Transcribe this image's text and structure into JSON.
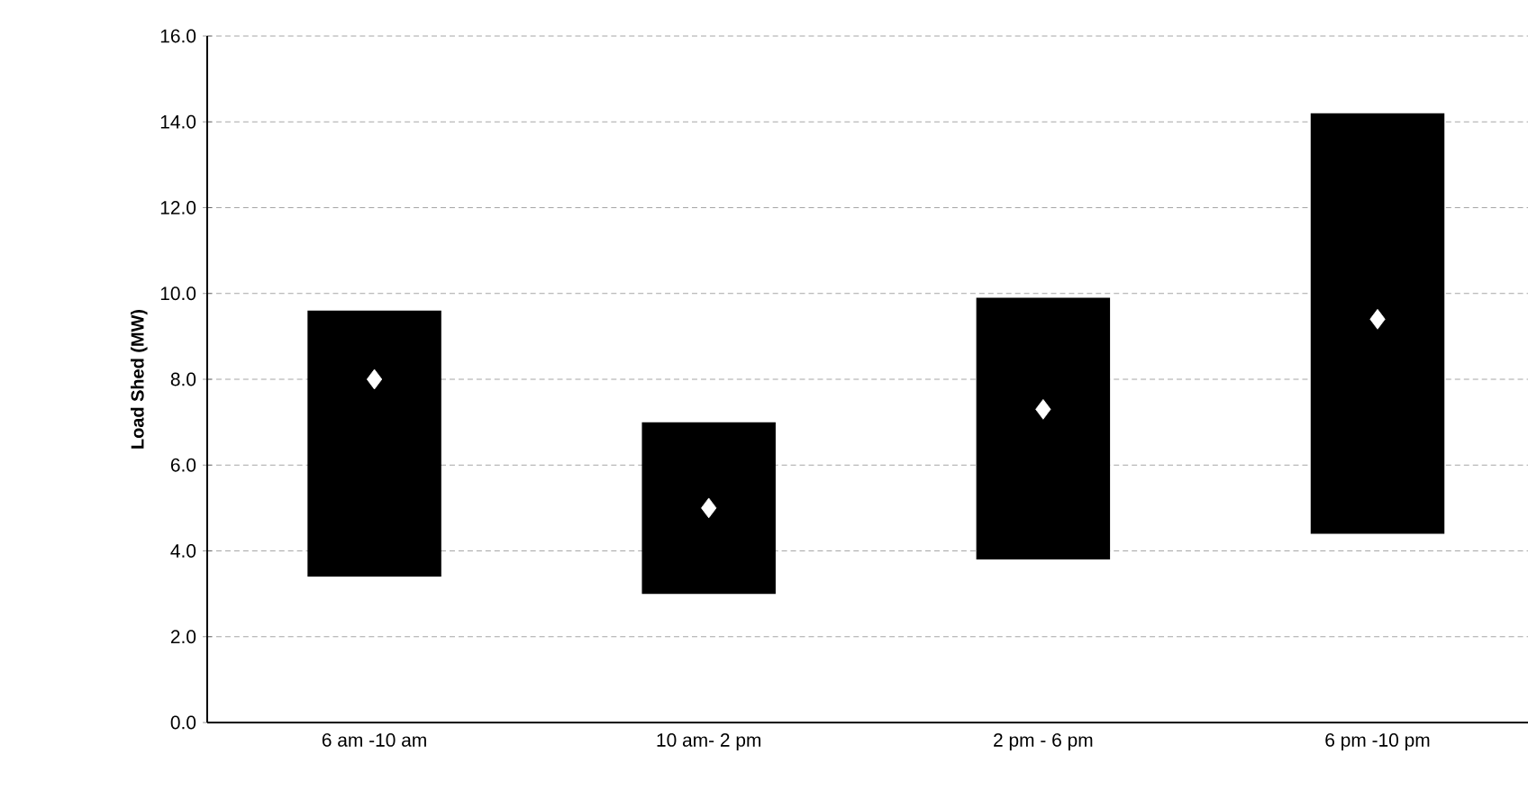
{
  "chart_data": {
    "type": "bar",
    "ylabel": "Load Shed (MW)",
    "categories": [
      "6 am -10 am",
      "10 am- 2 pm",
      "2 pm - 6 pm",
      "6 pm -10 pm"
    ],
    "series": [
      {
        "color": "#000000",
        "base": [
          3.4,
          3.0,
          3.8,
          4.4
        ],
        "values": [
          6.2,
          4.0,
          6.1,
          9.8
        ]
      },
      {
        "type": "scatter",
        "color": "#ffffff",
        "marker": "diamond",
        "x": [
          "6 am -10 am",
          "10 am- 2 pm",
          "2 pm - 6 pm",
          "6 pm -10 pm"
        ],
        "values": [
          8.0,
          5.0,
          7.3,
          9.4
        ]
      }
    ],
    "ylim": [
      0,
      16
    ],
    "yticks": [
      {
        "value": 0,
        "label": "0.0"
      },
      {
        "value": 2,
        "label": "2.0"
      },
      {
        "value": 4,
        "label": "4.0"
      },
      {
        "value": 6,
        "label": "6.0"
      },
      {
        "value": 8,
        "label": "8.0"
      },
      {
        "value": 10,
        "label": "10.0"
      },
      {
        "value": 12,
        "label": "12.0"
      },
      {
        "value": 14,
        "label": "14.0"
      },
      {
        "value": 16,
        "label": "16.0"
      }
    ],
    "grid": "y"
  }
}
